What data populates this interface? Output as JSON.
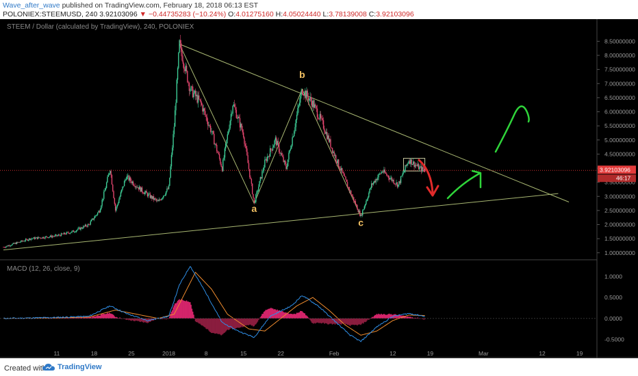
{
  "header": {
    "author": "Wave_after_wave",
    "published": "published on TradingView.com, February 18, 2018 06:13 EST",
    "symbol": "POLONIEX:STEEMUSD, 240",
    "last": "3.92103096",
    "change": "−0.44735283 (−10.24%)",
    "o_label": "O:",
    "o": "4.01275160",
    "h_label": "H:",
    "h": "4.05024440",
    "l_label": "L:",
    "l": "3.78139008",
    "c_label": "C:",
    "c": "3.92103096"
  },
  "chart_data": {
    "type": "candlestick",
    "title": "STEEM / Dollar (calculated by TradingView), 240, POLONIEX",
    "price_axis_ticks": [
      "8.50000000",
      "8.00000000",
      "7.50000000",
      "7.00000000",
      "6.50000000",
      "6.00000000",
      "5.50000000",
      "5.00000000",
      "4.50000000",
      "4.00000000",
      "3.50000000",
      "3.00000000",
      "2.50000000",
      "2.00000000",
      "1.50000000",
      "1.00000000"
    ],
    "price_ylim": [
      0.8,
      8.8
    ],
    "last_price_label": "3.92103096",
    "countdown_label": "46:17",
    "time_axis_ticks": [
      "11",
      "18",
      "25",
      "2018",
      "8",
      "15",
      "22",
      "Feb",
      "12",
      "19",
      "Mar",
      "12",
      "19"
    ],
    "price_path": [
      {
        "date": "2017-12-01",
        "price": 1.2
      },
      {
        "date": "2017-12-06",
        "price": 1.5
      },
      {
        "date": "2017-12-11",
        "price": 1.6
      },
      {
        "date": "2017-12-14",
        "price": 1.75
      },
      {
        "date": "2017-12-17",
        "price": 2.0
      },
      {
        "date": "2017-12-19",
        "price": 2.5
      },
      {
        "date": "2017-12-20",
        "price": 3.2
      },
      {
        "date": "2017-12-21",
        "price": 4.0
      },
      {
        "date": "2017-12-22",
        "price": 2.5
      },
      {
        "date": "2017-12-24",
        "price": 3.7
      },
      {
        "date": "2017-12-27",
        "price": 3.2
      },
      {
        "date": "2017-12-30",
        "price": 2.8
      },
      {
        "date": "2018-01-01",
        "price": 3.3
      },
      {
        "date": "2018-01-02",
        "price": 5.5
      },
      {
        "date": "2018-01-03",
        "price": 8.4
      },
      {
        "date": "2018-01-05",
        "price": 6.8
      },
      {
        "date": "2018-01-07",
        "price": 6.3
      },
      {
        "date": "2018-01-09",
        "price": 5.3
      },
      {
        "date": "2018-01-11",
        "price": 4.0
      },
      {
        "date": "2018-01-13",
        "price": 6.3
      },
      {
        "date": "2018-01-15",
        "price": 5.2
      },
      {
        "date": "2018-01-17",
        "price": 2.75
      },
      {
        "date": "2018-01-19",
        "price": 4.2
      },
      {
        "date": "2018-01-21",
        "price": 5.0
      },
      {
        "date": "2018-01-23",
        "price": 4.0
      },
      {
        "date": "2018-01-26",
        "price": 6.8
      },
      {
        "date": "2018-01-28",
        "price": 6.3
      },
      {
        "date": "2018-01-30",
        "price": 5.5
      },
      {
        "date": "2018-02-01",
        "price": 4.5
      },
      {
        "date": "2018-02-03",
        "price": 3.6
      },
      {
        "date": "2018-02-06",
        "price": 2.3
      },
      {
        "date": "2018-02-08",
        "price": 3.4
      },
      {
        "date": "2018-02-10",
        "price": 3.9
      },
      {
        "date": "2018-02-13",
        "price": 3.4
      },
      {
        "date": "2018-02-15",
        "price": 4.3
      },
      {
        "date": "2018-02-17",
        "price": 4.0
      },
      {
        "date": "2018-02-18",
        "price": 3.92
      }
    ],
    "macd": {
      "label": "MACD (12, 26, close, 9)",
      "axis_ticks": [
        "1.0000",
        "0.5000",
        "0.0000",
        "-0.5000"
      ],
      "ylim": [
        -0.9,
        1.35
      ],
      "macd_line": [
        {
          "date": "2017-12-01",
          "v": 0.0
        },
        {
          "date": "2017-12-10",
          "v": 0.02
        },
        {
          "date": "2017-12-17",
          "v": 0.05
        },
        {
          "date": "2017-12-21",
          "v": 0.3
        },
        {
          "date": "2017-12-24",
          "v": 0.12
        },
        {
          "date": "2017-12-28",
          "v": -0.05
        },
        {
          "date": "2018-01-01",
          "v": 0.05
        },
        {
          "date": "2018-01-03",
          "v": 0.8
        },
        {
          "date": "2018-01-05",
          "v": 1.25
        },
        {
          "date": "2018-01-08",
          "v": 0.6
        },
        {
          "date": "2018-01-11",
          "v": -0.1
        },
        {
          "date": "2018-01-14",
          "v": -0.3
        },
        {
          "date": "2018-01-17",
          "v": -0.45
        },
        {
          "date": "2018-01-20",
          "v": 0.05
        },
        {
          "date": "2018-01-24",
          "v": 0.3
        },
        {
          "date": "2018-01-26",
          "v": 0.55
        },
        {
          "date": "2018-01-29",
          "v": 0.3
        },
        {
          "date": "2018-02-01",
          "v": -0.05
        },
        {
          "date": "2018-02-04",
          "v": -0.4
        },
        {
          "date": "2018-02-06",
          "v": -0.55
        },
        {
          "date": "2018-02-09",
          "v": -0.2
        },
        {
          "date": "2018-02-12",
          "v": 0.05
        },
        {
          "date": "2018-02-15",
          "v": 0.12
        },
        {
          "date": "2018-02-18",
          "v": 0.05
        }
      ],
      "signal_line": [
        {
          "date": "2017-12-01",
          "v": 0.0
        },
        {
          "date": "2017-12-10",
          "v": 0.01
        },
        {
          "date": "2017-12-17",
          "v": 0.03
        },
        {
          "date": "2017-12-22",
          "v": 0.2
        },
        {
          "date": "2017-12-26",
          "v": 0.1
        },
        {
          "date": "2017-12-30",
          "v": 0.0
        },
        {
          "date": "2018-01-02",
          "v": 0.1
        },
        {
          "date": "2018-01-04",
          "v": 0.6
        },
        {
          "date": "2018-01-06",
          "v": 1.1
        },
        {
          "date": "2018-01-09",
          "v": 0.7
        },
        {
          "date": "2018-01-12",
          "v": 0.1
        },
        {
          "date": "2018-01-16",
          "v": -0.25
        },
        {
          "date": "2018-01-19",
          "v": -0.3
        },
        {
          "date": "2018-01-22",
          "v": 0.0
        },
        {
          "date": "2018-01-25",
          "v": 0.3
        },
        {
          "date": "2018-01-28",
          "v": 0.5
        },
        {
          "date": "2018-01-31",
          "v": 0.2
        },
        {
          "date": "2018-02-03",
          "v": -0.15
        },
        {
          "date": "2018-02-06",
          "v": -0.4
        },
        {
          "date": "2018-02-09",
          "v": -0.3
        },
        {
          "date": "2018-02-12",
          "v": -0.05
        },
        {
          "date": "2018-02-15",
          "v": 0.08
        },
        {
          "date": "2018-02-18",
          "v": 0.07
        }
      ]
    },
    "annotations": {
      "wave_labels": [
        {
          "text": "a",
          "date": "2018-01-17",
          "price": 2.45
        },
        {
          "text": "b",
          "date": "2018-01-26",
          "price": 7.2
        },
        {
          "text": "c",
          "date": "2018-02-06",
          "price": 1.95
        }
      ],
      "upper_trendline": [
        {
          "date": "2018-01-03",
          "price": 8.4
        },
        {
          "date": "2018-03-17",
          "price": 2.8
        }
      ],
      "lower_trendline": [
        {
          "date": "2017-12-01",
          "price": 1.1
        },
        {
          "date": "2018-03-15",
          "price": 3.1
        }
      ],
      "wave_lines": [
        {
          "date": "2018-01-03",
          "price": 8.4
        },
        {
          "date": "2018-01-17",
          "price": 2.75
        },
        {
          "date": "2018-01-26",
          "price": 6.8
        },
        {
          "date": "2018-02-06",
          "price": 2.3
        }
      ]
    },
    "colors": {
      "up": "#3ecc96",
      "down": "#e0456d",
      "macd": "#2f8fe8",
      "signal": "#f08c2e",
      "hist_pos": "#d4246a",
      "hist_neg": "#8a1d3e",
      "trend": "#a9b873",
      "wave_label": "#f2c062",
      "arrow_red": "#e02a2a",
      "arrow_green": "#2fd43a"
    }
  },
  "footer": {
    "created": "Created with",
    "brand": "TradingView"
  }
}
